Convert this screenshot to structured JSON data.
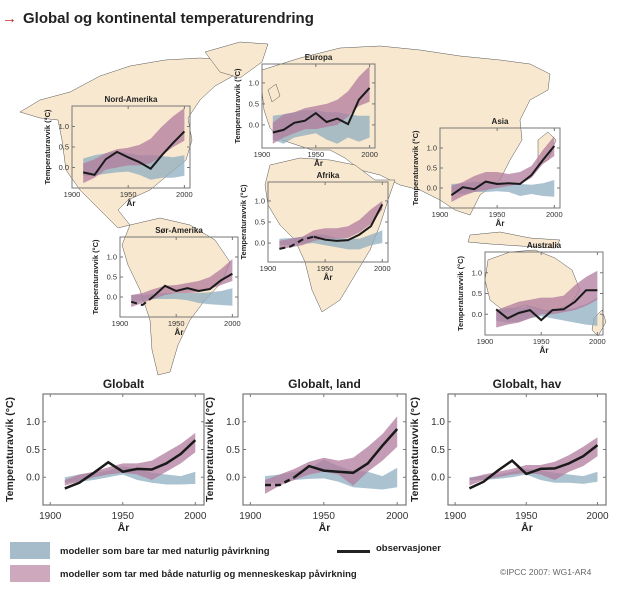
{
  "title": "Global og kontinental temperaturendring",
  "title_icon": "arrow-right-icon",
  "colors": {
    "natural": "#8faec0",
    "combined": "#b27b9c",
    "observed": "#1a1a1a",
    "land": "#f8e8cf",
    "title_arrow": "#c0272d"
  },
  "legend": {
    "natural_label": "modeller som bare tar med naturlig påvirkning",
    "combined_label": "modeller som tar med både naturlig og menneskeskap påvirkning",
    "observed_label": "observasjoner"
  },
  "credit": "©IPCC 2007: WG1-AR4",
  "chart_data": [
    {
      "type": "area",
      "region": "Nord-Amerika",
      "title": "Nord-Amerika",
      "xlabel": "År",
      "ylabel": "Temperaturavvik (°C)",
      "xticks": [
        "1900",
        "1950",
        "2000"
      ],
      "yticks": [
        "0.0",
        "0.5",
        "1.0"
      ],
      "xlim": [
        1900,
        2005
      ],
      "ylim": [
        -0.5,
        1.5
      ],
      "x": [
        1910,
        1920,
        1930,
        1940,
        1950,
        1960,
        1970,
        1980,
        1990,
        2000
      ],
      "observed": [
        -0.12,
        -0.18,
        0.2,
        0.38,
        0.25,
        0.13,
        -0.03,
        0.3,
        0.6,
        0.88
      ],
      "observed_dashed_until": null,
      "natural": {
        "low": [
          -0.2,
          -0.2,
          -0.15,
          -0.12,
          -0.1,
          -0.18,
          -0.3,
          -0.25,
          -0.25,
          -0.2
        ],
        "high": [
          0.22,
          0.3,
          0.35,
          0.4,
          0.35,
          0.3,
          0.3,
          0.28,
          0.25,
          0.3
        ]
      },
      "combined": {
        "low": [
          -0.38,
          -0.25,
          -0.05,
          0.0,
          0.05,
          0.05,
          0.1,
          0.3,
          0.5,
          0.65
        ],
        "high": [
          0.1,
          0.2,
          0.35,
          0.45,
          0.48,
          0.55,
          0.7,
          1.0,
          1.25,
          1.45
        ]
      }
    },
    {
      "type": "area",
      "region": "Europa",
      "title": "Europa",
      "xlabel": "År",
      "ylabel": "Temperaturavvik (°C)",
      "xticks": [
        "1900",
        "1950",
        "2000"
      ],
      "yticks": [
        "0.0",
        "0.5",
        "1.0"
      ],
      "xlim": [
        1900,
        2005
      ],
      "ylim": [
        -0.55,
        1.45
      ],
      "x": [
        1910,
        1920,
        1930,
        1940,
        1950,
        1960,
        1970,
        1980,
        1990,
        2000
      ],
      "observed": [
        -0.18,
        -0.12,
        0.05,
        0.1,
        0.28,
        0.07,
        0.15,
        0.02,
        0.6,
        0.88
      ],
      "observed_dashed_until": null,
      "natural": {
        "low": [
          -0.35,
          -0.45,
          -0.3,
          -0.25,
          -0.2,
          -0.35,
          -0.45,
          -0.3,
          -0.4,
          -0.3
        ],
        "high": [
          0.22,
          0.25,
          0.3,
          0.35,
          0.35,
          0.3,
          0.3,
          0.25,
          0.22,
          0.22
        ]
      },
      "combined": {
        "low": [
          -0.45,
          -0.3,
          -0.2,
          -0.1,
          -0.1,
          -0.05,
          0.0,
          0.2,
          0.45,
          0.55
        ],
        "high": [
          0.05,
          0.25,
          0.3,
          0.4,
          0.45,
          0.5,
          0.6,
          0.8,
          1.15,
          1.4
        ]
      }
    },
    {
      "type": "area",
      "region": "Asia",
      "title": "Asia",
      "xlabel": "År",
      "ylabel": "Temperaturavvik (°C)",
      "xticks": [
        "1900",
        "1950",
        "2000"
      ],
      "yticks": [
        "0.0",
        "0.5",
        "1.0"
      ],
      "xlim": [
        1900,
        2005
      ],
      "ylim": [
        -0.5,
        1.5
      ],
      "x": [
        1910,
        1920,
        1930,
        1940,
        1950,
        1960,
        1970,
        1980,
        1990,
        2000
      ],
      "observed": [
        -0.18,
        0.02,
        -0.03,
        0.16,
        0.1,
        0.12,
        0.1,
        0.32,
        0.7,
        1.05
      ],
      "observed_dashed_until": null,
      "natural": {
        "low": [
          -0.12,
          -0.15,
          -0.1,
          -0.1,
          -0.08,
          -0.1,
          -0.2,
          -0.15,
          -0.2,
          -0.22
        ],
        "high": [
          0.1,
          0.12,
          0.15,
          0.15,
          0.15,
          0.12,
          0.1,
          0.08,
          0.12,
          0.2
        ]
      },
      "combined": {
        "low": [
          -0.35,
          -0.2,
          -0.1,
          -0.05,
          0.0,
          0.05,
          0.1,
          0.25,
          0.6,
          0.8
        ],
        "high": [
          0.05,
          0.15,
          0.3,
          0.4,
          0.4,
          0.35,
          0.4,
          0.55,
          0.95,
          1.3
        ]
      }
    },
    {
      "type": "area",
      "region": "Afrika",
      "title": "Afrika",
      "xlabel": "År",
      "ylabel": "Temperaturavvik (°C)",
      "xticks": [
        "1900",
        "1950",
        "2000"
      ],
      "yticks": [
        "0.0",
        "0.5",
        "1.0"
      ],
      "xlim": [
        1900,
        2005
      ],
      "ylim": [
        -0.45,
        1.45
      ],
      "x": [
        1910,
        1920,
        1930,
        1940,
        1950,
        1960,
        1970,
        1980,
        1990,
        2000
      ],
      "observed": [
        -0.14,
        -0.08,
        0.08,
        0.15,
        0.08,
        0.05,
        0.07,
        0.2,
        0.4,
        0.92
      ],
      "observed_dashed_until": 1940,
      "natural": {
        "low": [
          -0.05,
          -0.05,
          -0.02,
          0.0,
          -0.05,
          -0.1,
          -0.15,
          -0.15,
          -0.05,
          0.0
        ],
        "high": [
          0.1,
          0.12,
          0.15,
          0.2,
          0.2,
          0.12,
          0.1,
          0.1,
          0.2,
          0.3
        ]
      },
      "combined": {
        "low": [
          -0.15,
          -0.1,
          -0.05,
          0.05,
          0.1,
          0.1,
          0.12,
          0.25,
          0.45,
          0.8
        ],
        "high": [
          0.05,
          0.1,
          0.15,
          0.3,
          0.35,
          0.35,
          0.4,
          0.55,
          0.8,
          1.0
        ]
      }
    },
    {
      "type": "area",
      "region": "Sør-Amerika",
      "title": "Sør-Amerika",
      "xlabel": "År",
      "ylabel": "Temperaturavvik (°C)",
      "xticks": [
        "1900",
        "1950",
        "2000"
      ],
      "yticks": [
        "0.0",
        "0.5",
        "1.0"
      ],
      "xlim": [
        1900,
        2005
      ],
      "ylim": [
        -0.5,
        1.5
      ],
      "x": [
        1910,
        1920,
        1930,
        1940,
        1950,
        1960,
        1970,
        1980,
        1990,
        2000
      ],
      "observed": [
        -0.12,
        -0.2,
        0.02,
        0.28,
        0.15,
        0.22,
        0.15,
        0.2,
        0.42,
        0.58
      ],
      "observed_dashed_until": 1930,
      "natural": {
        "low": [
          -0.12,
          -0.1,
          -0.05,
          -0.05,
          -0.05,
          -0.08,
          -0.15,
          -0.18,
          -0.2,
          -0.22
        ],
        "high": [
          0.05,
          0.05,
          0.08,
          0.1,
          0.1,
          0.1,
          0.1,
          0.12,
          0.15,
          0.22
        ]
      },
      "combined": {
        "low": [
          -0.25,
          -0.15,
          -0.05,
          0.05,
          0.1,
          0.1,
          0.12,
          0.2,
          0.3,
          0.4
        ],
        "high": [
          0.05,
          0.1,
          0.2,
          0.28,
          0.3,
          0.35,
          0.4,
          0.5,
          0.7,
          0.95
        ]
      }
    },
    {
      "type": "area",
      "region": "Australia",
      "title": "Australia",
      "xlabel": "År",
      "ylabel": "Temperaturavvik (°C)",
      "xticks": [
        "1900",
        "1950",
        "2000"
      ],
      "yticks": [
        "0.0",
        "0.5",
        "1.0"
      ],
      "xlim": [
        1900,
        2005
      ],
      "ylim": [
        -0.5,
        1.5
      ],
      "x": [
        1910,
        1920,
        1930,
        1940,
        1950,
        1960,
        1970,
        1980,
        1990,
        2000
      ],
      "observed": [
        0.12,
        -0.1,
        0.03,
        0.1,
        -0.14,
        0.1,
        0.12,
        0.3,
        0.58,
        0.58
      ],
      "observed_dashed_until": null,
      "natural": {
        "low": [
          -0.15,
          -0.2,
          -0.18,
          -0.1,
          -0.05,
          -0.1,
          -0.15,
          -0.2,
          -0.25,
          -0.28
        ],
        "high": [
          0.1,
          0.15,
          0.15,
          0.2,
          0.1,
          0.1,
          0.1,
          0.15,
          0.25,
          0.4
        ]
      },
      "combined": {
        "low": [
          -0.32,
          -0.25,
          -0.2,
          -0.1,
          0.0,
          0.0,
          0.05,
          0.1,
          0.2,
          0.35
        ],
        "high": [
          0.1,
          0.2,
          0.3,
          0.35,
          0.4,
          0.4,
          0.45,
          0.7,
          0.9,
          1.05
        ]
      }
    },
    {
      "type": "area",
      "region": "Globalt",
      "title": "Globalt",
      "xlabel": "År",
      "ylabel": "Temperaturavvik (°C)",
      "xticks": [
        "1900",
        "1950",
        "2000"
      ],
      "yticks": [
        "0.0",
        "0.5",
        "1.0"
      ],
      "xlim": [
        1895,
        2006
      ],
      "ylim": [
        -0.5,
        1.5
      ],
      "x": [
        1910,
        1920,
        1930,
        1940,
        1950,
        1960,
        1970,
        1980,
        1990,
        2000
      ],
      "observed": [
        -0.2,
        -0.1,
        0.08,
        0.27,
        0.1,
        0.15,
        0.14,
        0.25,
        0.42,
        0.67
      ],
      "observed_dashed_until": null,
      "natural": {
        "low": [
          -0.1,
          -0.08,
          -0.05,
          0.0,
          0.05,
          -0.05,
          -0.1,
          -0.13,
          -0.13,
          -0.12
        ],
        "high": [
          0.0,
          0.05,
          0.08,
          0.12,
          0.2,
          0.15,
          0.08,
          0.05,
          0.02,
          0.1
        ]
      },
      "combined": {
        "low": [
          -0.15,
          -0.08,
          0.0,
          0.05,
          0.08,
          0.05,
          -0.05,
          0.1,
          0.25,
          0.45
        ],
        "high": [
          -0.05,
          0.05,
          0.1,
          0.18,
          0.25,
          0.25,
          0.3,
          0.45,
          0.6,
          0.8
        ]
      }
    },
    {
      "type": "area",
      "region": "Globalt, land",
      "title": "Globalt, land",
      "xlabel": "År",
      "ylabel": "Temperaturavvik (°C)",
      "xticks": [
        "1900",
        "1950",
        "2000"
      ],
      "yticks": [
        "0.0",
        "0.5",
        "1.0"
      ],
      "xlim": [
        1895,
        2006
      ],
      "ylim": [
        -0.5,
        1.5
      ],
      "x": [
        1910,
        1920,
        1930,
        1940,
        1950,
        1960,
        1970,
        1980,
        1990,
        2000
      ],
      "observed": [
        -0.14,
        -0.14,
        0.0,
        0.2,
        0.12,
        0.1,
        0.08,
        0.25,
        0.57,
        0.87
      ],
      "observed_dashed_until": 1930,
      "natural": {
        "low": [
          -0.1,
          -0.1,
          -0.05,
          -0.03,
          -0.02,
          -0.08,
          -0.18,
          -0.2,
          -0.22,
          -0.18
        ],
        "high": [
          0.02,
          0.05,
          0.1,
          0.15,
          0.32,
          0.2,
          0.12,
          0.1,
          0.02,
          0.17
        ]
      },
      "combined": {
        "low": [
          -0.3,
          -0.15,
          -0.05,
          0.05,
          0.1,
          0.05,
          -0.15,
          0.1,
          0.3,
          0.55
        ],
        "high": [
          -0.05,
          0.05,
          0.15,
          0.28,
          0.35,
          0.3,
          0.35,
          0.55,
          0.78,
          1.1
        ]
      }
    },
    {
      "type": "area",
      "region": "Globalt, hav",
      "title": "Globalt, hav",
      "xlabel": "År",
      "ylabel": "Temperaturavvik (°C)",
      "xticks": [
        "1900",
        "1950",
        "2000"
      ],
      "yticks": [
        "0.0",
        "0.5",
        "1.0"
      ],
      "xlim": [
        1895,
        2006
      ],
      "ylim": [
        -0.5,
        1.5
      ],
      "x": [
        1910,
        1920,
        1930,
        1940,
        1950,
        1960,
        1970,
        1980,
        1990,
        2000
      ],
      "observed": [
        -0.2,
        -0.08,
        0.12,
        0.3,
        0.06,
        0.15,
        0.16,
        0.25,
        0.38,
        0.58
      ],
      "observed_dashed_until": null,
      "natural": {
        "low": [
          -0.05,
          -0.05,
          -0.03,
          0.0,
          0.05,
          -0.05,
          -0.1,
          -0.1,
          -0.12,
          -0.08
        ],
        "high": [
          0.0,
          0.03,
          0.05,
          0.1,
          0.15,
          0.12,
          0.08,
          0.05,
          0.02,
          0.1
        ]
      },
      "combined": {
        "low": [
          -0.15,
          -0.05,
          0.0,
          0.05,
          0.08,
          0.05,
          -0.05,
          0.1,
          0.2,
          0.38
        ],
        "high": [
          -0.02,
          0.05,
          0.1,
          0.15,
          0.22,
          0.22,
          0.28,
          0.4,
          0.55,
          0.72
        ]
      }
    }
  ]
}
